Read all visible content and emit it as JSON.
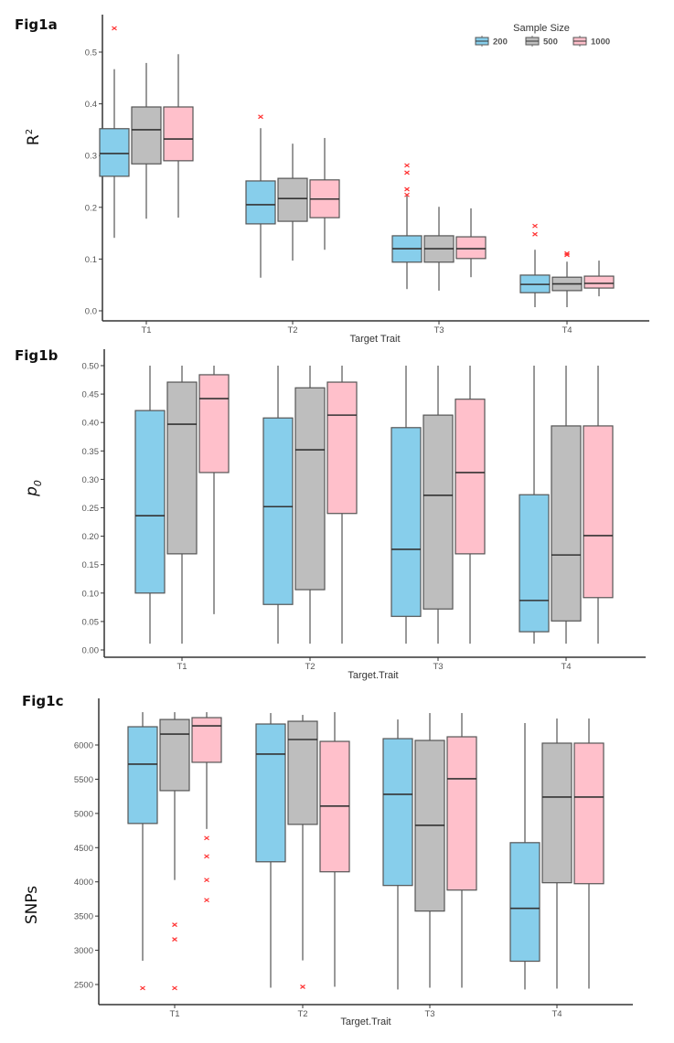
{
  "chart_data": [
    {
      "type": "box",
      "panel_label": "Fig1a",
      "xlabel": "Target Trait",
      "ylabel": "R²",
      "ylabel_base": "R",
      "ylabel_sup": "2",
      "ylim": [
        -0.02,
        0.57
      ],
      "yticks": [
        0.0,
        0.1,
        0.2,
        0.3,
        0.4,
        0.5
      ],
      "ytick_labels": [
        "0.0",
        "0.1",
        "0.2",
        "0.3",
        "0.4",
        "0.5"
      ],
      "categories": [
        "T1",
        "T2",
        "T3",
        "T4"
      ],
      "legend": {
        "title": "Sample Size",
        "placement": "top-right",
        "entries": [
          "200",
          "500",
          "1000"
        ]
      },
      "series": [
        {
          "name": "200",
          "color": "#87CEEB",
          "boxes": [
            {
              "whislo": 0.141,
              "q1": 0.26,
              "med": 0.304,
              "q3": 0.352,
              "whishi": 0.467,
              "outliers": [
                0.546
              ]
            },
            {
              "whislo": 0.064,
              "q1": 0.168,
              "med": 0.205,
              "q3": 0.251,
              "whishi": 0.353,
              "outliers": [
                0.375
              ]
            },
            {
              "whislo": 0.042,
              "q1": 0.094,
              "med": 0.12,
              "q3": 0.145,
              "whishi": 0.224,
              "outliers": [
                0.224,
                0.235,
                0.267,
                0.281
              ]
            },
            {
              "whislo": 0.007,
              "q1": 0.035,
              "med": 0.051,
              "q3": 0.069,
              "whishi": 0.118,
              "outliers": [
                0.148,
                0.164
              ]
            }
          ]
        },
        {
          "name": "500",
          "color": "#BEBEBE",
          "boxes": [
            {
              "whislo": 0.178,
              "q1": 0.284,
              "med": 0.35,
              "q3": 0.394,
              "whishi": 0.479,
              "outliers": []
            },
            {
              "whislo": 0.097,
              "q1": 0.173,
              "med": 0.217,
              "q3": 0.256,
              "whishi": 0.323,
              "outliers": []
            },
            {
              "whislo": 0.039,
              "q1": 0.094,
              "med": 0.12,
              "q3": 0.145,
              "whishi": 0.201,
              "outliers": []
            },
            {
              "whislo": 0.007,
              "q1": 0.039,
              "med": 0.052,
              "q3": 0.065,
              "whishi": 0.095,
              "outliers": [
                0.108,
                0.111
              ]
            }
          ]
        },
        {
          "name": "1000",
          "color": "#FFC0CB",
          "boxes": [
            {
              "whislo": 0.18,
              "q1": 0.29,
              "med": 0.332,
              "q3": 0.394,
              "whishi": 0.496,
              "outliers": []
            },
            {
              "whislo": 0.118,
              "q1": 0.18,
              "med": 0.216,
              "q3": 0.253,
              "whishi": 0.334,
              "outliers": []
            },
            {
              "whislo": 0.065,
              "q1": 0.101,
              "med": 0.12,
              "q3": 0.143,
              "whishi": 0.198,
              "outliers": []
            },
            {
              "whislo": 0.028,
              "q1": 0.044,
              "med": 0.053,
              "q3": 0.067,
              "whishi": 0.097,
              "outliers": []
            }
          ]
        }
      ]
    },
    {
      "type": "box",
      "panel_label": "Fig1b",
      "xlabel": "Target.Trait",
      "ylabel": "p0",
      "ylabel_base": "p",
      "ylabel_sub": "0",
      "ylim": [
        -0.013,
        0.515
      ],
      "yticks": [
        0.0,
        0.05,
        0.1,
        0.15,
        0.2,
        0.25,
        0.3,
        0.35,
        0.4,
        0.45,
        0.5
      ],
      "ytick_labels": [
        "0.00",
        "0.05",
        "0.10",
        "0.15",
        "0.20",
        "0.25",
        "0.30",
        "0.35",
        "0.40",
        "0.45",
        "0.50"
      ],
      "categories": [
        "T1",
        "T2",
        "T3",
        "T4"
      ],
      "series": [
        {
          "name": "200",
          "color": "#87CEEB",
          "boxes": [
            {
              "whislo": 0.011,
              "q1": 0.1,
              "med": 0.236,
              "q3": 0.421,
              "whishi": 0.5,
              "outliers": []
            },
            {
              "whislo": 0.011,
              "q1": 0.08,
              "med": 0.252,
              "q3": 0.408,
              "whishi": 0.5,
              "outliers": []
            },
            {
              "whislo": 0.011,
              "q1": 0.059,
              "med": 0.177,
              "q3": 0.391,
              "whishi": 0.5,
              "outliers": []
            },
            {
              "whislo": 0.011,
              "q1": 0.032,
              "med": 0.087,
              "q3": 0.273,
              "whishi": 0.5,
              "outliers": []
            }
          ]
        },
        {
          "name": "500",
          "color": "#BEBEBE",
          "boxes": [
            {
              "whislo": 0.011,
              "q1": 0.169,
              "med": 0.397,
              "q3": 0.471,
              "whishi": 0.5,
              "outliers": []
            },
            {
              "whislo": 0.011,
              "q1": 0.106,
              "med": 0.352,
              "q3": 0.461,
              "whishi": 0.5,
              "outliers": []
            },
            {
              "whislo": 0.011,
              "q1": 0.072,
              "med": 0.272,
              "q3": 0.413,
              "whishi": 0.5,
              "outliers": []
            },
            {
              "whislo": 0.011,
              "q1": 0.051,
              "med": 0.167,
              "q3": 0.394,
              "whishi": 0.5,
              "outliers": []
            }
          ]
        },
        {
          "name": "1000",
          "color": "#FFC0CB",
          "boxes": [
            {
              "whislo": 0.063,
              "q1": 0.312,
              "med": 0.442,
              "q3": 0.484,
              "whishi": 0.5,
              "outliers": []
            },
            {
              "whislo": 0.011,
              "q1": 0.24,
              "med": 0.413,
              "q3": 0.471,
              "whishi": 0.5,
              "outliers": []
            },
            {
              "whislo": 0.011,
              "q1": 0.169,
              "med": 0.312,
              "q3": 0.441,
              "whishi": 0.5,
              "outliers": []
            },
            {
              "whislo": 0.011,
              "q1": 0.092,
              "med": 0.201,
              "q3": 0.394,
              "whishi": 0.5,
              "outliers": []
            }
          ]
        }
      ]
    },
    {
      "type": "box",
      "panel_label": "Fig1c",
      "xlabel": "Target.Trait",
      "ylabel": "SNPs",
      "ylim": [
        2210,
        6560
      ],
      "yticks": [
        2500,
        3000,
        3500,
        4000,
        4500,
        5000,
        5500,
        6000
      ],
      "ytick_labels": [
        "2500",
        "3000",
        "3500",
        "4000",
        "4500",
        "5000",
        "5500",
        "6000"
      ],
      "categories": [
        "T1",
        "T2",
        "T3",
        "T4"
      ],
      "series": [
        {
          "name": "200",
          "color": "#87CEEB",
          "boxes": [
            {
              "whislo": 2847,
              "q1": 4853,
              "med": 5720,
              "q3": 6267,
              "whishi": 6480,
              "outliers": [
                2447
              ]
            },
            {
              "whislo": 2453,
              "q1": 4293,
              "med": 5867,
              "q3": 6307,
              "whishi": 6467,
              "outliers": []
            },
            {
              "whislo": 2427,
              "q1": 3947,
              "med": 5280,
              "q3": 6093,
              "whishi": 6373,
              "outliers": []
            },
            {
              "whislo": 2427,
              "q1": 2840,
              "med": 3613,
              "q3": 4573,
              "whishi": 6320,
              "outliers": []
            }
          ]
        },
        {
          "name": "500",
          "color": "#BEBEBE",
          "boxes": [
            {
              "whislo": 4027,
              "q1": 5333,
              "med": 6160,
              "q3": 6373,
              "whishi": 6480,
              "outliers": [
                2447,
                3160,
                3373
              ]
            },
            {
              "whislo": 2853,
              "q1": 4840,
              "med": 6080,
              "q3": 6347,
              "whishi": 6440,
              "outliers": [
                2467
              ]
            },
            {
              "whislo": 2453,
              "q1": 3573,
              "med": 4827,
              "q3": 6067,
              "whishi": 6467,
              "outliers": []
            },
            {
              "whislo": 2440,
              "q1": 3987,
              "med": 5240,
              "q3": 6027,
              "whishi": 6387,
              "outliers": []
            }
          ]
        },
        {
          "name": "1000",
          "color": "#FFC0CB",
          "boxes": [
            {
              "whislo": 4773,
              "q1": 5747,
              "med": 6280,
              "q3": 6400,
              "whishi": 6480,
              "outliers": [
                3733,
                4027,
                4373,
                4640
              ]
            },
            {
              "whislo": 2467,
              "q1": 4147,
              "med": 5107,
              "q3": 6053,
              "whishi": 6480,
              "outliers": []
            },
            {
              "whislo": 2453,
              "q1": 3880,
              "med": 5507,
              "q3": 6120,
              "whishi": 6467,
              "outliers": []
            },
            {
              "whislo": 2440,
              "q1": 3973,
              "med": 5240,
              "q3": 6027,
              "whishi": 6387,
              "outliers": []
            }
          ]
        }
      ]
    }
  ],
  "style": {
    "outlier_color": "#FF3333",
    "box_stroke": "#555555",
    "median_stroke": "#333333",
    "axis_color": "#333333"
  }
}
